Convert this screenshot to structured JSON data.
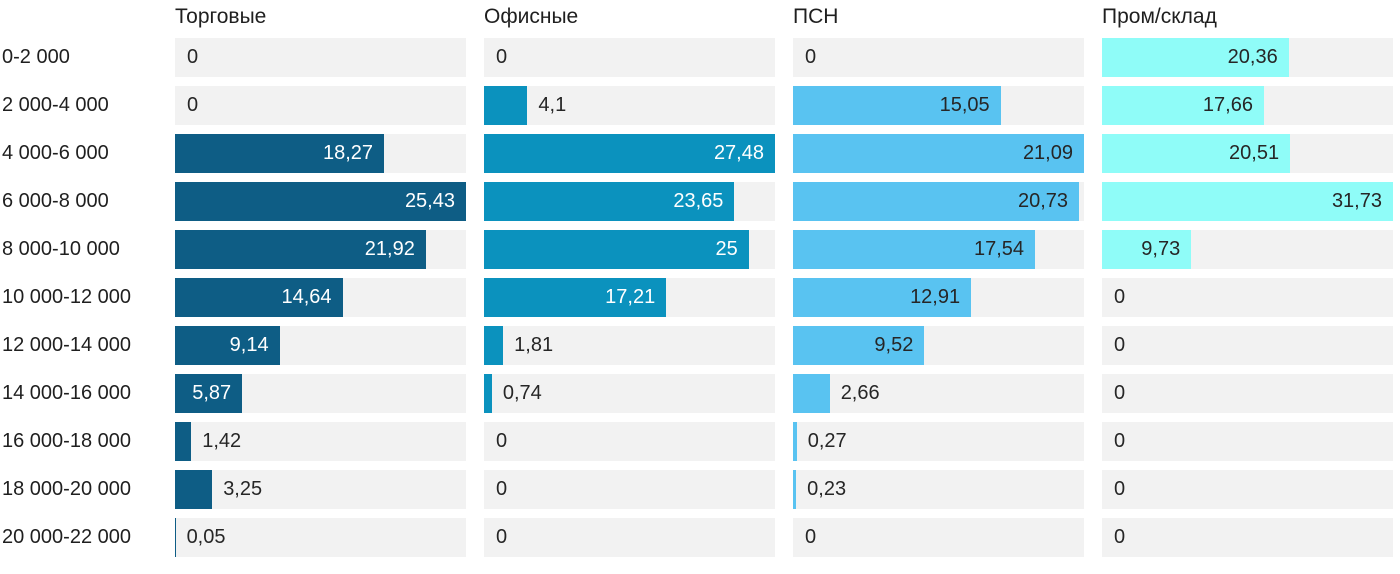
{
  "chart_data": {
    "type": "bar",
    "orientation": "horizontal",
    "layout": "small-multiples: one bar column per series, shared category rows",
    "value_scaling": "each column scaled independently so its max value fills the track",
    "grid": false,
    "legend_position": "none (column headers act as series titles)",
    "categories": [
      "0-2 000",
      "2 000-4 000",
      "4 000-6 000",
      "6 000-8 000",
      "8 000-10 000",
      "10 000-12 000",
      "12 000-14 000",
      "14 000-16 000",
      "16 000-18 000",
      "18 000-20 000",
      "20 000-22 000"
    ],
    "series": [
      {
        "name": "Торговые",
        "color": "#0e5d85",
        "inside_label_color": "#ffffff",
        "axis_max": 25.43,
        "values": [
          0,
          0,
          18.27,
          25.43,
          21.92,
          14.64,
          9.14,
          5.87,
          1.42,
          3.25,
          0.05
        ],
        "labels": [
          "0",
          "0",
          "18,27",
          "25,43",
          "21,92",
          "14,64",
          "9,14",
          "5,87",
          "1,42",
          "3,25",
          "0,05"
        ]
      },
      {
        "name": "Офисные",
        "color": "#0b92be",
        "inside_label_color": "#ffffff",
        "axis_max": 27.48,
        "values": [
          0,
          4.1,
          27.48,
          23.65,
          25,
          17.21,
          1.81,
          0.74,
          0,
          0,
          0
        ],
        "labels": [
          "0",
          "4,1",
          "27,48",
          "23,65",
          "25",
          "17,21",
          "1,81",
          "0,74",
          "0",
          "0",
          "0"
        ]
      },
      {
        "name": "ПСН",
        "color": "#59c3f1",
        "inside_label_color": "#262626",
        "axis_max": 21.09,
        "values": [
          0,
          15.05,
          21.09,
          20.73,
          17.54,
          12.91,
          9.52,
          2.66,
          0.27,
          0.23,
          0
        ],
        "labels": [
          "0",
          "15,05",
          "21,09",
          "20,73",
          "17,54",
          "12,91",
          "9,52",
          "2,66",
          "0,27",
          "0,23",
          "0"
        ]
      },
      {
        "name": "Пром/склад",
        "color": "#8ffcf8",
        "inside_label_color": "#262626",
        "axis_max": 31.73,
        "values": [
          20.36,
          17.66,
          20.51,
          31.73,
          9.73,
          0,
          0,
          0,
          0,
          0,
          0
        ],
        "labels": [
          "20,36",
          "17,66",
          "20,51",
          "31,73",
          "9,73",
          "0",
          "0",
          "0",
          "0",
          "0",
          "0"
        ]
      }
    ],
    "colors": {
      "track": "#f2f2f2",
      "text": "#1f1f1f",
      "value_text_dark": "#262626",
      "value_text_light": "#ffffff",
      "background": "#ffffff"
    }
  }
}
